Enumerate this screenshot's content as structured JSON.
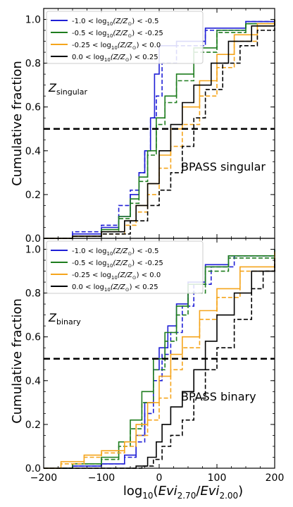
{
  "figure": {
    "ylabel": "Cumulative fraction",
    "xlabel": "log₁₀(Evi₂.₇₀/Evi₂.₀₀)",
    "xlabel_parts": {
      "pre": "log",
      "pre_sub": "10",
      "open": "(",
      "num": "Evi",
      "num_sub": "2.70",
      "slash": "/",
      "den": "Evi",
      "den_sub": "2.00",
      "close": ")"
    }
  },
  "chart_data": [
    {
      "type": "line",
      "panel": "top",
      "annotation": "BPASS singular",
      "tag": {
        "main": "Z",
        "sub": "singular"
      },
      "xlim": [
        -200,
        200
      ],
      "ylim": [
        0,
        1.05
      ],
      "xticks": [
        -200,
        -100,
        0,
        100,
        200
      ],
      "yticks": [
        0.0,
        0.2,
        0.4,
        0.6,
        0.8,
        1.0
      ],
      "hline": {
        "y": 0.5,
        "style": "dashed"
      },
      "legend_position": "upper-left",
      "series": [
        {
          "name": "-1.0 < log₁₀(Z/Z☉) < -0.5",
          "name_parts": {
            "pre": "-1.0 < log",
            "sub": "10",
            "post": "(Z/Z",
            "sun": "⊙",
            "tail": ") < -0.5"
          },
          "color": "#1f1fd6",
          "solid": [
            [
              -200,
              0.0
            ],
            [
              -150,
              0.02
            ],
            [
              -100,
              0.05
            ],
            [
              -70,
              0.1
            ],
            [
              -50,
              0.2
            ],
            [
              -35,
              0.3
            ],
            [
              -25,
              0.4
            ],
            [
              -15,
              0.55
            ],
            [
              -8,
              0.75
            ],
            [
              0,
              0.88
            ],
            [
              30,
              0.9
            ],
            [
              80,
              0.96
            ],
            [
              150,
              0.99
            ],
            [
              200,
              1.0
            ]
          ],
          "dashed": [
            [
              -200,
              0.0
            ],
            [
              -150,
              0.03
            ],
            [
              -100,
              0.06
            ],
            [
              -70,
              0.15
            ],
            [
              -50,
              0.22
            ],
            [
              -35,
              0.3
            ],
            [
              -25,
              0.4
            ],
            [
              -15,
              0.55
            ],
            [
              -5,
              0.65
            ],
            [
              5,
              0.8
            ],
            [
              30,
              0.88
            ],
            [
              80,
              0.95
            ],
            [
              150,
              0.99
            ],
            [
              200,
              1.0
            ]
          ]
        },
        {
          "name": "-0.5 < log₁₀(Z/Z☉) < -0.25",
          "name_parts": {
            "pre": "-0.5 < log",
            "sub": "10",
            "post": "(Z/Z",
            "sun": "⊙",
            "tail": ") < -0.25"
          },
          "color": "#1e7d1e",
          "solid": [
            [
              -200,
              0.0
            ],
            [
              -150,
              0.01
            ],
            [
              -100,
              0.04
            ],
            [
              -70,
              0.1
            ],
            [
              -50,
              0.18
            ],
            [
              -35,
              0.28
            ],
            [
              -20,
              0.4
            ],
            [
              -5,
              0.55
            ],
            [
              10,
              0.65
            ],
            [
              30,
              0.75
            ],
            [
              60,
              0.87
            ],
            [
              100,
              0.95
            ],
            [
              150,
              0.98
            ],
            [
              200,
              1.0
            ]
          ],
          "dashed": [
            [
              -200,
              0.0
            ],
            [
              -150,
              0.01
            ],
            [
              -100,
              0.03
            ],
            [
              -70,
              0.09
            ],
            [
              -50,
              0.16
            ],
            [
              -35,
              0.26
            ],
            [
              -20,
              0.38
            ],
            [
              -5,
              0.52
            ],
            [
              10,
              0.62
            ],
            [
              30,
              0.72
            ],
            [
              60,
              0.85
            ],
            [
              100,
              0.94
            ],
            [
              150,
              0.98
            ],
            [
              200,
              1.0
            ]
          ]
        },
        {
          "name": "-0.25 < log₁₀(Z/Z☉) < 0.0",
          "name_parts": {
            "pre": "-0.25 < log",
            "sub": "10",
            "post": "(Z/Z",
            "sun": "⊙",
            "tail": ") < 0.0"
          },
          "color": "#f5a51c",
          "solid": [
            [
              -200,
              0.0
            ],
            [
              -150,
              0.01
            ],
            [
              -100,
              0.03
            ],
            [
              -60,
              0.08
            ],
            [
              -40,
              0.15
            ],
            [
              -20,
              0.25
            ],
            [
              0,
              0.38
            ],
            [
              20,
              0.5
            ],
            [
              40,
              0.6
            ],
            [
              70,
              0.72
            ],
            [
              100,
              0.84
            ],
            [
              130,
              0.93
            ],
            [
              170,
              0.98
            ],
            [
              200,
              1.0
            ]
          ],
          "dashed": [
            [
              -200,
              0.0
            ],
            [
              -150,
              0.01
            ],
            [
              -100,
              0.02
            ],
            [
              -60,
              0.06
            ],
            [
              -40,
              0.12
            ],
            [
              -20,
              0.2
            ],
            [
              0,
              0.32
            ],
            [
              20,
              0.42
            ],
            [
              40,
              0.52
            ],
            [
              70,
              0.65
            ],
            [
              100,
              0.78
            ],
            [
              130,
              0.9
            ],
            [
              170,
              0.97
            ],
            [
              200,
              1.0
            ]
          ]
        },
        {
          "name": "0.0 < log₁₀(Z/Z☉) < 0.25",
          "name_parts": {
            "pre": "0.0 < log",
            "sub": "10",
            "post": "(Z/Z",
            "sun": "⊙",
            "tail": ") < 0.25"
          },
          "color": "#000000",
          "solid": [
            [
              -200,
              0.0
            ],
            [
              -150,
              0.01
            ],
            [
              -100,
              0.03
            ],
            [
              -60,
              0.08
            ],
            [
              -40,
              0.15
            ],
            [
              -20,
              0.25
            ],
            [
              0,
              0.4
            ],
            [
              20,
              0.52
            ],
            [
              40,
              0.62
            ],
            [
              60,
              0.7
            ],
            [
              90,
              0.8
            ],
            [
              120,
              0.9
            ],
            [
              160,
              0.97
            ],
            [
              200,
              1.0
            ]
          ],
          "dashed": [
            [
              -200,
              0.0
            ],
            [
              -150,
              0.01
            ],
            [
              -100,
              0.02
            ],
            [
              -50,
              0.08
            ],
            [
              -20,
              0.15
            ],
            [
              0,
              0.22
            ],
            [
              20,
              0.3
            ],
            [
              40,
              0.42
            ],
            [
              60,
              0.55
            ],
            [
              80,
              0.68
            ],
            [
              110,
              0.8
            ],
            [
              140,
              0.88
            ],
            [
              170,
              0.95
            ],
            [
              200,
              0.98
            ]
          ]
        }
      ]
    },
    {
      "type": "line",
      "panel": "bottom",
      "annotation": "BPASS binary",
      "tag": {
        "main": "Z",
        "sub": "binary"
      },
      "xlim": [
        -200,
        200
      ],
      "ylim": [
        0,
        1.05
      ],
      "xticks": [
        -200,
        -100,
        0,
        100,
        200
      ],
      "yticks": [
        0.0,
        0.2,
        0.4,
        0.6,
        0.8,
        1.0
      ],
      "hline": {
        "y": 0.5,
        "style": "dashed"
      },
      "legend_position": "upper-left",
      "series": [
        {
          "name": "-1.0 < log₁₀(Z/Z☉) < -0.5",
          "name_parts": {
            "pre": "-1.0 < log",
            "sub": "10",
            "post": "(Z/Z",
            "sun": "⊙",
            "tail": ") < -0.5"
          },
          "color": "#1f1fd6",
          "solid": [
            [
              -200,
              0.0
            ],
            [
              -150,
              0.01
            ],
            [
              -100,
              0.02
            ],
            [
              -60,
              0.06
            ],
            [
              -40,
              0.15
            ],
            [
              -25,
              0.3
            ],
            [
              -10,
              0.45
            ],
            [
              0,
              0.55
            ],
            [
              15,
              0.65
            ],
            [
              30,
              0.75
            ],
            [
              50,
              0.85
            ],
            [
              80,
              0.93
            ],
            [
              120,
              0.97
            ],
            [
              200,
              1.0
            ]
          ],
          "dashed": [
            [
              -200,
              0.0
            ],
            [
              -150,
              0.01
            ],
            [
              -100,
              0.02
            ],
            [
              -60,
              0.05
            ],
            [
              -40,
              0.12
            ],
            [
              -25,
              0.25
            ],
            [
              -10,
              0.4
            ],
            [
              5,
              0.52
            ],
            [
              20,
              0.62
            ],
            [
              40,
              0.74
            ],
            [
              60,
              0.84
            ],
            [
              90,
              0.92
            ],
            [
              130,
              0.97
            ],
            [
              200,
              1.0
            ]
          ]
        },
        {
          "name": "-0.5 < log₁₀(Z/Z☉) < -0.25",
          "name_parts": {
            "pre": "-0.5 < log",
            "sub": "10",
            "post": "(Z/Z",
            "sun": "⊙",
            "tail": ") < -0.25"
          },
          "color": "#1e7d1e",
          "solid": [
            [
              -200,
              0.0
            ],
            [
              -150,
              0.02
            ],
            [
              -100,
              0.05
            ],
            [
              -70,
              0.12
            ],
            [
              -50,
              0.22
            ],
            [
              -30,
              0.35
            ],
            [
              -10,
              0.5
            ],
            [
              10,
              0.62
            ],
            [
              30,
              0.74
            ],
            [
              50,
              0.84
            ],
            [
              80,
              0.92
            ],
            [
              120,
              0.97
            ],
            [
              200,
              1.0
            ]
          ],
          "dashed": [
            [
              -200,
              0.0
            ],
            [
              -150,
              0.02
            ],
            [
              -100,
              0.04
            ],
            [
              -70,
              0.1
            ],
            [
              -50,
              0.18
            ],
            [
              -30,
              0.3
            ],
            [
              -10,
              0.45
            ],
            [
              10,
              0.58
            ],
            [
              30,
              0.7
            ],
            [
              50,
              0.8
            ],
            [
              80,
              0.9
            ],
            [
              120,
              0.96
            ],
            [
              200,
              1.0
            ]
          ]
        },
        {
          "name": "-0.25 < log₁₀(Z/Z☉) < 0.0",
          "name_parts": {
            "pre": "-0.25 < log",
            "sub": "10",
            "post": "(Z/Z",
            "sun": "⊙",
            "tail": ") < 0.0"
          },
          "color": "#f5a51c",
          "solid": [
            [
              -200,
              0.0
            ],
            [
              -170,
              0.03
            ],
            [
              -130,
              0.06
            ],
            [
              -100,
              0.08
            ],
            [
              -60,
              0.12
            ],
            [
              -40,
              0.2
            ],
            [
              -20,
              0.3
            ],
            [
              0,
              0.42
            ],
            [
              20,
              0.52
            ],
            [
              40,
              0.6
            ],
            [
              70,
              0.72
            ],
            [
              100,
              0.82
            ],
            [
              140,
              0.92
            ],
            [
              200,
              0.99
            ]
          ],
          "dashed": [
            [
              -200,
              0.0
            ],
            [
              -170,
              0.02
            ],
            [
              -130,
              0.05
            ],
            [
              -100,
              0.07
            ],
            [
              -60,
              0.1
            ],
            [
              -40,
              0.15
            ],
            [
              -20,
              0.22
            ],
            [
              0,
              0.32
            ],
            [
              20,
              0.45
            ],
            [
              40,
              0.55
            ],
            [
              70,
              0.68
            ],
            [
              100,
              0.78
            ],
            [
              140,
              0.9
            ],
            [
              200,
              0.98
            ]
          ]
        },
        {
          "name": "0.0 < log₁₀(Z/Z☉) < 0.25",
          "name_parts": {
            "pre": "0.0 < log",
            "sub": "10",
            "post": "(Z/Z",
            "sun": "⊙",
            "tail": ") < 0.25"
          },
          "color": "#000000",
          "solid": [
            [
              -200,
              0.0
            ],
            [
              -100,
              0.0
            ],
            [
              -40,
              0.01
            ],
            [
              -20,
              0.05
            ],
            [
              -5,
              0.12
            ],
            [
              5,
              0.2
            ],
            [
              20,
              0.28
            ],
            [
              40,
              0.35
            ],
            [
              60,
              0.45
            ],
            [
              80,
              0.58
            ],
            [
              100,
              0.7
            ],
            [
              130,
              0.8
            ],
            [
              160,
              0.9
            ],
            [
              200,
              0.96
            ]
          ],
          "dashed": [
            [
              -200,
              0.0
            ],
            [
              -100,
              0.0
            ],
            [
              -30,
              0.01
            ],
            [
              -10,
              0.04
            ],
            [
              5,
              0.1
            ],
            [
              20,
              0.15
            ],
            [
              40,
              0.22
            ],
            [
              60,
              0.32
            ],
            [
              80,
              0.45
            ],
            [
              100,
              0.55
            ],
            [
              130,
              0.68
            ],
            [
              160,
              0.82
            ],
            [
              180,
              0.9
            ],
            [
              200,
              0.95
            ]
          ]
        }
      ]
    }
  ]
}
